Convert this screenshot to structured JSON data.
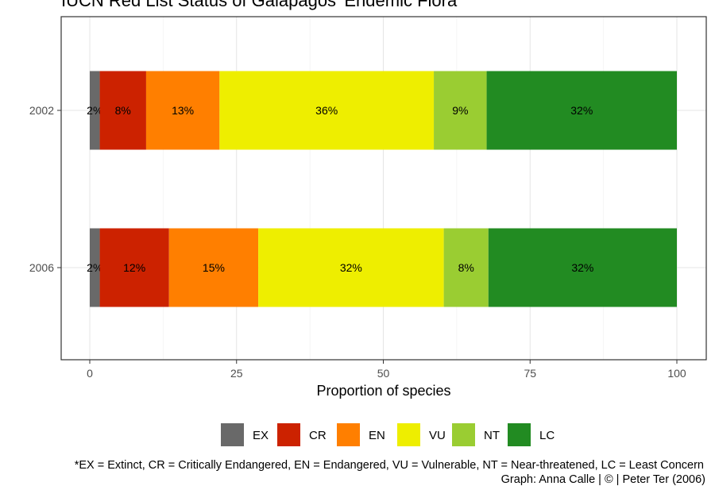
{
  "chart_data": {
    "type": "bar",
    "orientation": "horizontal",
    "stacked": true,
    "title": "IUCN Red List Status of Galapagos' Endemic Flora",
    "xlabel": "Proportion of species",
    "ylabel": "",
    "xlim": [
      0,
      100
    ],
    "x_ticks": [
      0,
      25,
      50,
      75,
      100
    ],
    "categories": [
      "2002",
      "2006"
    ],
    "series": [
      {
        "name": "EX",
        "color": "#696969",
        "values": [
          1.7,
          1.7
        ],
        "labels": [
          "2%",
          "2%"
        ]
      },
      {
        "name": "CR",
        "color": "#cc2200",
        "values": [
          7.9,
          11.8
        ],
        "labels": [
          "8%",
          "12%"
        ]
      },
      {
        "name": "EN",
        "color": "#ff7f00",
        "values": [
          12.5,
          15.2
        ],
        "labels": [
          "13%",
          "15%"
        ]
      },
      {
        "name": "VU",
        "color": "#eeee00",
        "values": [
          36.5,
          31.6
        ],
        "labels": [
          "36%",
          "32%"
        ]
      },
      {
        "name": "NT",
        "color": "#9acd32",
        "values": [
          9.0,
          7.6
        ],
        "labels": [
          "9%",
          "8%"
        ]
      },
      {
        "name": "LC",
        "color": "#228b22",
        "values": [
          32.4,
          32.1
        ],
        "labels": [
          "32%",
          "32%"
        ]
      }
    ],
    "grid": true,
    "legend_position": "bottom"
  },
  "footnotes": {
    "abbreviations": "*EX = Extinct, CR = Critically Endangered, EN = Endangered, VU = Vulnerable, NT = Near-threatened, LC = Least Concern",
    "source": "Graph: Anna Calle | © | Peter Ter (2006)"
  }
}
